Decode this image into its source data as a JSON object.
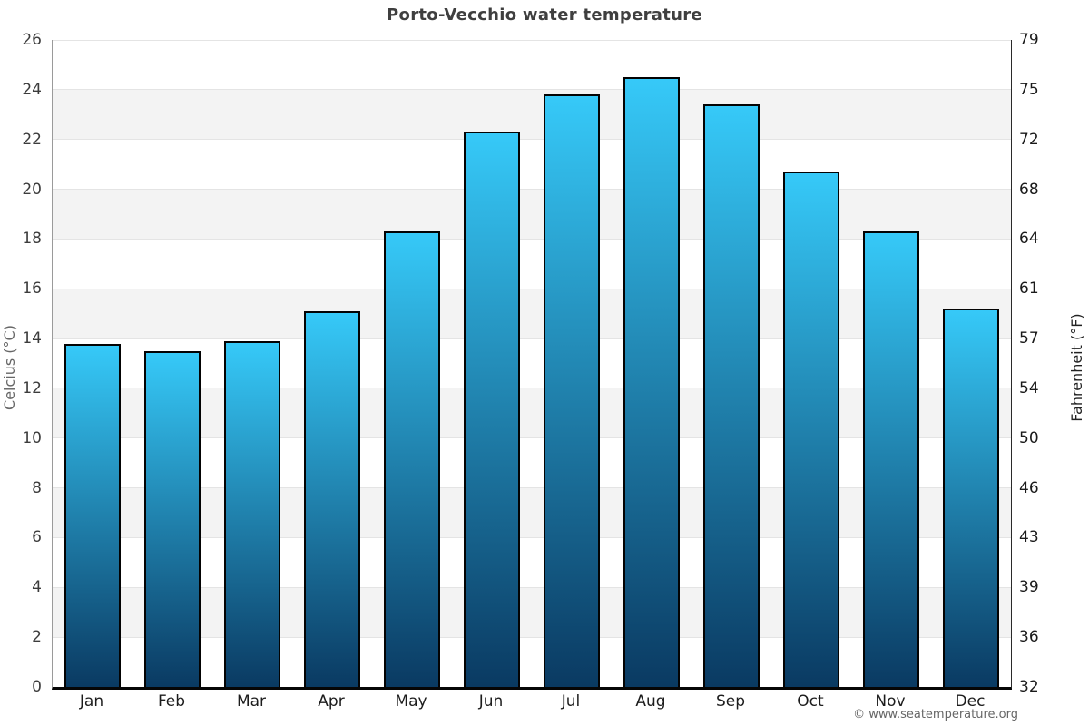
{
  "page": {
    "copyright": "© www.seatemperature.org"
  },
  "chart_data": {
    "type": "bar",
    "title": "Porto-Vecchio water temperature",
    "categories": [
      "Jan",
      "Feb",
      "Mar",
      "Apr",
      "May",
      "Jun",
      "Jul",
      "Aug",
      "Sep",
      "Oct",
      "Nov",
      "Dec"
    ],
    "values": [
      13.8,
      13.5,
      13.9,
      15.1,
      18.3,
      22.3,
      23.8,
      24.5,
      23.4,
      20.7,
      18.3,
      15.2
    ],
    "unit": "°C",
    "xlabel": "",
    "ylabel_left": "Celcius (°C)",
    "ylabel_right": "Fahrenheit (°F)",
    "ylim": [
      0,
      26
    ],
    "celsius_ticks": [
      26,
      24,
      22,
      20,
      18,
      16,
      14,
      12,
      10,
      8,
      6,
      4,
      2,
      0
    ],
    "fahrenheit_ticks": [
      79,
      75,
      72,
      68,
      64,
      61,
      57,
      54,
      50,
      46,
      43,
      39,
      36,
      32
    ],
    "grid": true,
    "legend": false,
    "band_step": 2,
    "colors": {
      "bar_gradient_top": "#36c9f8",
      "bar_gradient_bottom": "#0a3a62",
      "bar_border": "#030303",
      "band_gray": "#f3f3f3",
      "band_white": "#ffffff",
      "gridline": "#e4e4e4",
      "title": "#3f3f3f",
      "tick_left": "#3c3c3c",
      "tick_right": "#1a1a1a"
    }
  }
}
